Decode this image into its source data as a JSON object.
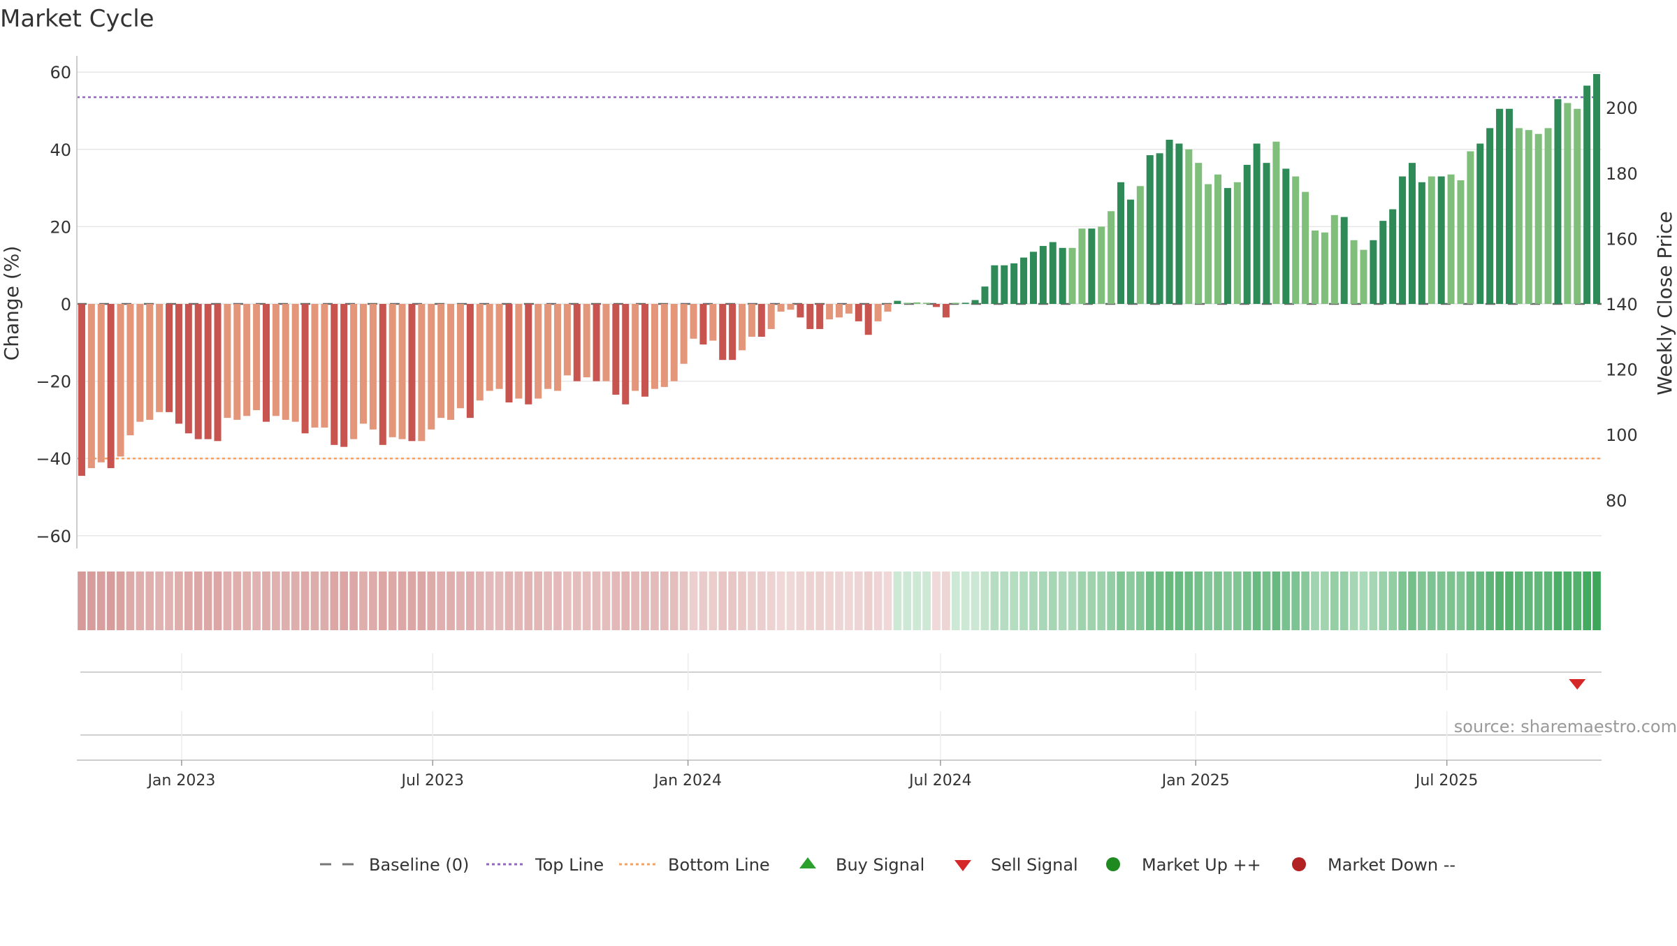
{
  "chart_data": {
    "type": "bar",
    "title": "Market Cycle",
    "ylabel": "Change (%)",
    "y2label": "Weekly Close Price",
    "ylim": [
      -60,
      60
    ],
    "y2lim": [
      80,
      200
    ],
    "yticks": [
      "60",
      "40",
      "20",
      "0",
      "−20",
      "−40",
      "−60"
    ],
    "y2ticks": [
      "200",
      "180",
      "160",
      "140",
      "120",
      "100",
      "80"
    ],
    "x_start_week": "2022-10-21",
    "xticks": [
      "Jan 2023",
      "Jul 2023",
      "Jan 2024",
      "Jul 2024",
      "Jan 2025",
      "Jul 2025"
    ],
    "reference_lines": {
      "baseline": 0,
      "top_line": 53.5,
      "bottom_line": -40
    },
    "colors": {
      "strong_down": "#c85450",
      "weak_down": "#e3967a",
      "strong_up": "#2e8b57",
      "weak_up": "#7fbf7b",
      "top_line": "#9467bd",
      "bottom_line": "#f4a261",
      "buy": "#2ca02c",
      "sell": "#d62728",
      "market_up": "#1f8a1f",
      "market_down": "#b22222"
    },
    "series": [
      {
        "values": [
          -44.5,
          -42.5,
          -41,
          -42.5,
          -39.5,
          -34,
          -30.5,
          -30,
          -28,
          -28,
          -31,
          -33.5,
          -35,
          -35,
          -35.5,
          -29.5,
          -30,
          -29,
          -27.5,
          -30.5,
          -29,
          -30,
          -30.5,
          -33.5,
          -32,
          -32,
          -36.5,
          -37,
          -35,
          -31,
          -32.5,
          -36.5,
          -34.5,
          -35,
          -35.5,
          -35.5,
          -32.5,
          -29.5,
          -30,
          -27,
          -29.5,
          -25,
          -22.5,
          -22,
          -25.5,
          -24.5,
          -26,
          -24.5,
          -22,
          -22.5,
          -18.5,
          -20,
          -19,
          -20,
          -20,
          -23.5,
          -26,
          -22.5,
          -24,
          -22,
          -21.5,
          -20,
          -15.5,
          -9,
          -10.5,
          -9.5,
          -14.5,
          -14.5,
          -12,
          -8.5,
          -8.5,
          -6.5,
          -2,
          -1.5,
          -3.5,
          -6.5,
          -6.5,
          -4,
          -3.5,
          -2.5,
          -4.5,
          -8,
          -4.5,
          -2,
          0.8,
          0.3,
          0.4,
          0.3,
          -0.8,
          -3.5,
          0.3,
          0.3,
          1,
          4.5,
          10,
          10,
          10.5,
          12,
          13.5,
          15,
          16,
          14.5,
          14.5,
          19.5,
          19.5,
          20,
          24,
          31.5,
          27,
          30.5,
          38.5,
          39,
          42.5,
          41.5,
          40,
          36.5,
          31,
          33.5,
          30,
          31.5,
          36,
          41.5,
          36.5,
          42,
          35,
          33,
          29,
          19,
          18.5,
          23,
          22.5,
          16.5,
          14,
          16.5,
          21.5,
          24.5,
          33,
          36.5,
          31.5,
          33,
          33,
          33.5,
          32,
          39.5,
          41.5,
          45.5,
          50.5,
          50.5,
          45.5,
          45,
          44,
          45.5,
          53,
          52,
          50.5,
          56.5,
          59.5
        ],
        "shade": [
          1,
          0,
          0,
          1,
          0,
          0,
          0,
          0,
          0,
          1,
          1,
          1,
          1,
          1,
          1,
          0,
          0,
          0,
          0,
          1,
          0,
          0,
          0,
          1,
          0,
          0,
          1,
          1,
          0,
          0,
          0,
          1,
          0,
          0,
          1,
          0,
          0,
          0,
          0,
          0,
          1,
          0,
          0,
          0,
          1,
          0,
          1,
          0,
          0,
          0,
          0,
          1,
          0,
          1,
          0,
          1,
          1,
          0,
          1,
          0,
          0,
          0,
          0,
          0,
          1,
          0,
          1,
          1,
          0,
          0,
          1,
          0,
          0,
          0,
          1,
          1,
          1,
          0,
          0,
          0,
          1,
          1,
          0,
          0,
          1,
          0,
          0,
          0,
          1,
          1,
          0,
          1,
          1,
          1,
          1,
          1,
          1,
          1,
          1,
          1,
          1,
          1,
          0,
          0,
          1,
          0,
          0,
          1,
          1,
          0,
          1,
          1,
          1,
          1,
          0,
          0,
          0,
          0,
          1,
          0,
          1,
          1,
          1,
          0,
          1,
          0,
          0,
          0,
          0,
          0,
          1,
          0,
          0,
          1,
          1,
          1,
          1,
          1,
          1,
          0,
          1,
          0,
          0,
          0,
          1,
          1,
          1,
          1,
          0,
          0,
          0,
          0,
          1,
          0,
          0,
          1,
          1
        ]
      }
    ],
    "sell_signals": [
      "2025-10-03"
    ],
    "buy_signals": [],
    "source": "source: sharemaestro.com",
    "legend": {
      "placement": "bottom",
      "items": [
        {
          "label": "Baseline (0)",
          "marker": "dashed-line",
          "color": "#777777"
        },
        {
          "label": "Top Line",
          "marker": "dotted-line",
          "color": "#9467bd"
        },
        {
          "label": "Bottom Line",
          "marker": "dotted-line",
          "color": "#f4a261"
        },
        {
          "label": "Buy Signal",
          "marker": "triangle-up",
          "color": "#2ca02c"
        },
        {
          "label": "Sell Signal",
          "marker": "triangle-down",
          "color": "#d62728"
        },
        {
          "label": "Market Up ++",
          "marker": "circle",
          "color": "#1f8a1f"
        },
        {
          "label": "Market Down --",
          "marker": "circle",
          "color": "#b22222"
        }
      ]
    }
  }
}
